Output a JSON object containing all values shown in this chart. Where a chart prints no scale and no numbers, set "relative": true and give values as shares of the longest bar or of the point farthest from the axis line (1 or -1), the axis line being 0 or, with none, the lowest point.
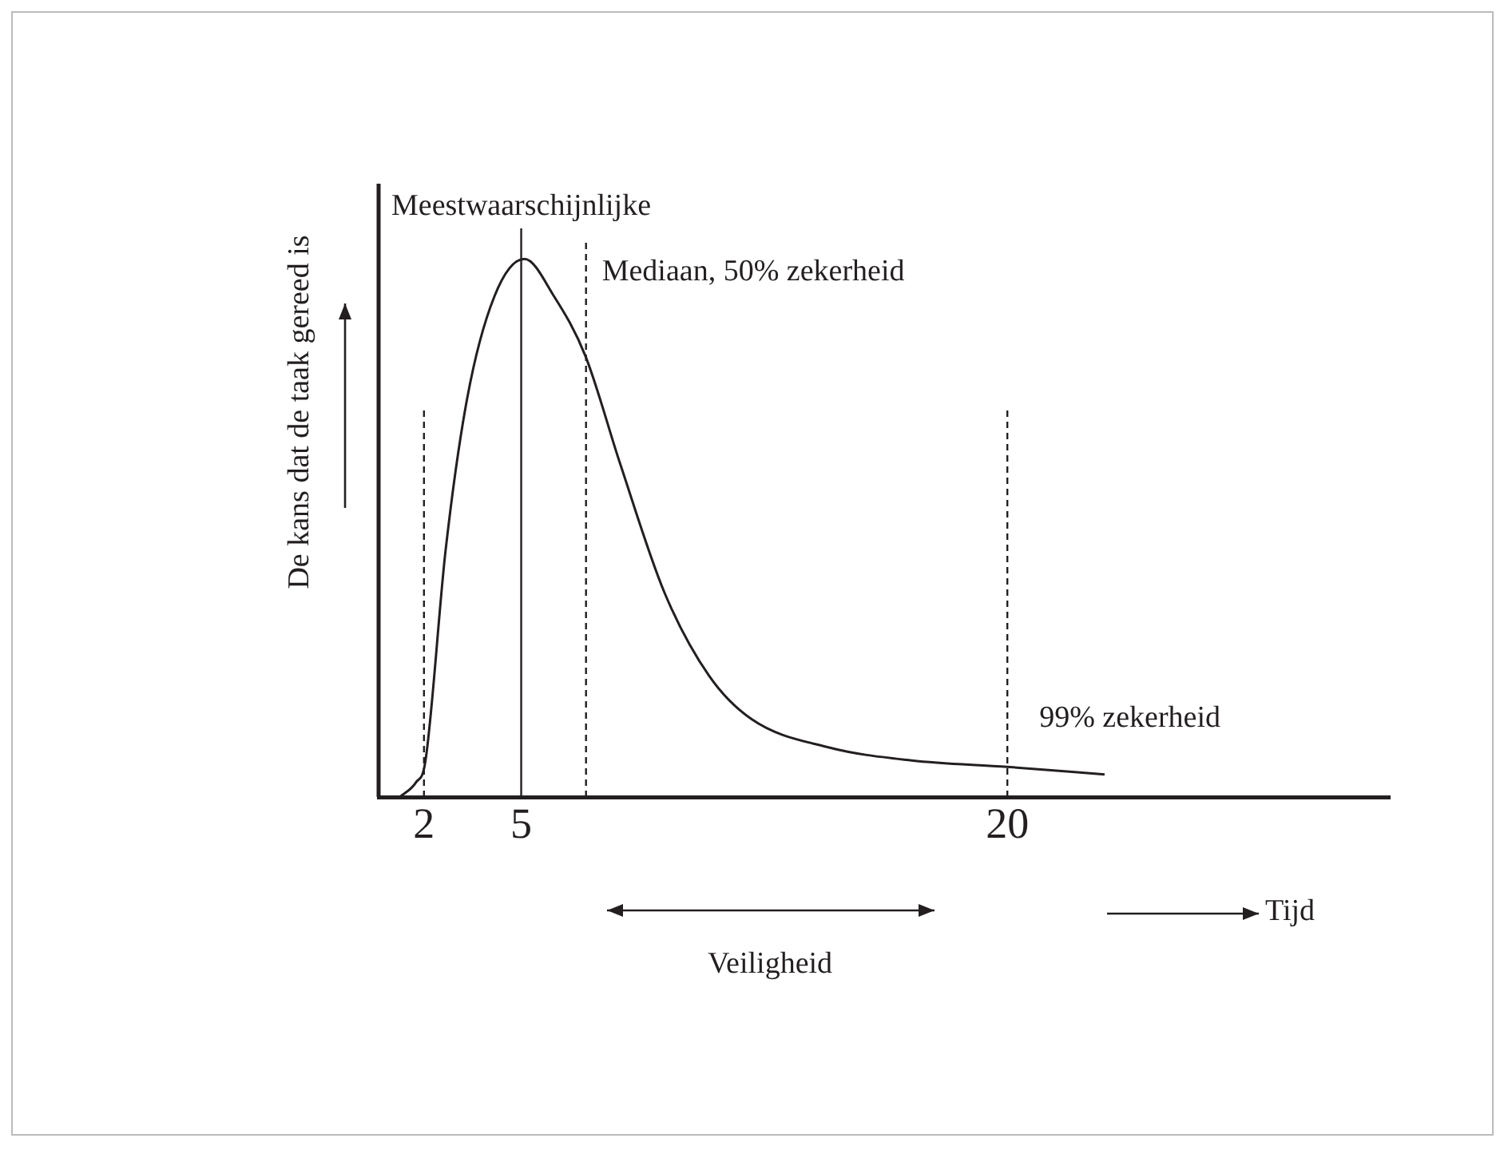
{
  "chart_data": {
    "type": "line",
    "xlabel": "Tijd",
    "ylabel": "De kans dat de taak gereed is",
    "relative": true,
    "x": [
      1.25,
      1.75,
      2.04,
      2.67,
      3.33,
      4.17,
      5.1,
      6.02,
      6.98,
      8.05,
      9.42,
      10.8,
      12.1,
      14.5,
      17.05,
      20,
      23
    ],
    "values": [
      0,
      0.027,
      0.065,
      0.46,
      0.74,
      0.93,
      1,
      0.93,
      0.82,
      0.62,
      0.38,
      0.225,
      0.145,
      0.092,
      0.068,
      0.056,
      0.042
    ],
    "color": "#231f20",
    "xlim": [
      0.6,
      31.8
    ],
    "xticks": [
      2,
      5,
      20
    ],
    "grid": false,
    "legend": false,
    "marker": "none",
    "line_style": "solid",
    "ref_lines": [
      {
        "axis": "x",
        "value": 2,
        "line_style": "dashed"
      },
      {
        "axis": "x",
        "value": 5,
        "label": "Meestwaarschijnlijke",
        "line_style": "solid"
      },
      {
        "axis": "x",
        "value": 7,
        "label": "Mediaan, 50% zekerheid",
        "line_style": "dashed"
      },
      {
        "axis": "x",
        "value": 20,
        "line_style": "dashed"
      }
    ],
    "annotations": [
      {
        "text": "99% zekerheid",
        "x": 20,
        "y": 0.145
      },
      "Veiligheid"
    ]
  }
}
